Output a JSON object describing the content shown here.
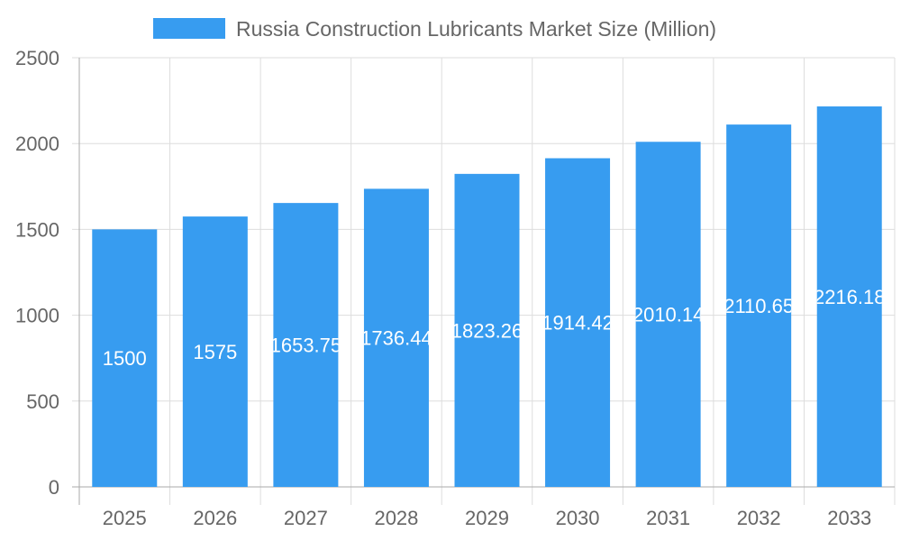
{
  "chart_data": {
    "type": "bar",
    "title": "",
    "legend": {
      "label": "Russia Construction Lubricants Market Size (Million)",
      "placement": "top"
    },
    "categories": [
      "2025",
      "2026",
      "2027",
      "2028",
      "2029",
      "2030",
      "2031",
      "2032",
      "2033"
    ],
    "series": [
      {
        "name": "Russia Construction Lubricants Market Size (Million)",
        "values": [
          1500,
          1575,
          1653.75,
          1736.44,
          1823.26,
          1914.42,
          2010.14,
          2110.65,
          2216.18
        ]
      }
    ],
    "data_labels": [
      "1500",
      "1575",
      "1653.75",
      "1736.44",
      "1823.26",
      "1914.42",
      "2010.14",
      "2110.65",
      "2216.18"
    ],
    "yticks": [
      "0",
      "500",
      "1000",
      "1500",
      "2000",
      "2500"
    ],
    "ylim": [
      0,
      2500
    ],
    "grid": true,
    "colors": {
      "bar": "#379cf0",
      "grid": "#dddddd",
      "text": "#666666"
    }
  }
}
